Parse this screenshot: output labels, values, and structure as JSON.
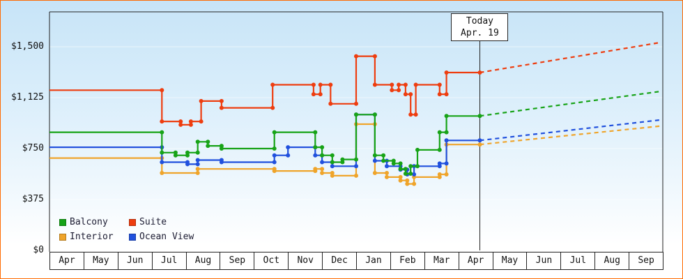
{
  "frame": {
    "border_color": "#ff6a00"
  },
  "chart_data": {
    "type": "line-step",
    "title": "",
    "y_axis": {
      "tick_labels": [
        "$0",
        "$375",
        "$750",
        "$1,125",
        "$1,500"
      ],
      "tick_values": [
        0,
        375,
        750,
        1125,
        1500
      ]
    },
    "x_axis": {
      "month_labels": [
        "Apr",
        "May",
        "Jun",
        "Jul",
        "Aug",
        "Sep",
        "Oct",
        "Nov",
        "Dec",
        "Jan",
        "Feb",
        "Mar",
        "Apr",
        "May",
        "Jun",
        "Jul",
        "Aug",
        "Sep"
      ]
    },
    "today": {
      "label": "Today",
      "date": "Apr. 19",
      "month_position": 12.63
    },
    "projection_end_month": 17.9,
    "series": [
      {
        "name": "Interior",
        "color": "#efa42a",
        "steps": [
          [
            0,
            680
          ],
          [
            3.3,
            570
          ],
          [
            4.35,
            600
          ],
          [
            6.6,
            585
          ],
          [
            7.8,
            600
          ],
          [
            8.0,
            570
          ],
          [
            8.3,
            550
          ],
          [
            9.0,
            930
          ],
          [
            9.55,
            570
          ],
          [
            9.9,
            540
          ],
          [
            10.3,
            515
          ],
          [
            10.5,
            490
          ],
          [
            10.7,
            540
          ],
          [
            11.45,
            560
          ],
          [
            11.65,
            780
          ]
        ],
        "projection_value": 915
      },
      {
        "name": "Ocean View",
        "color": "#2050dd",
        "steps": [
          [
            0,
            760
          ],
          [
            3.3,
            650
          ],
          [
            4.05,
            635
          ],
          [
            4.35,
            665
          ],
          [
            5.05,
            650
          ],
          [
            6.6,
            700
          ],
          [
            7.0,
            760
          ],
          [
            7.8,
            700
          ],
          [
            8.0,
            650
          ],
          [
            8.3,
            620
          ],
          [
            9.0,
            1000
          ],
          [
            9.55,
            660
          ],
          [
            9.9,
            620
          ],
          [
            10.3,
            595
          ],
          [
            10.5,
            560
          ],
          [
            10.7,
            620
          ],
          [
            11.45,
            640
          ],
          [
            11.65,
            810
          ]
        ],
        "projection_value": 960
      },
      {
        "name": "Balcony",
        "color": "#17a317",
        "steps": [
          [
            0,
            870
          ],
          [
            3.3,
            720
          ],
          [
            3.7,
            700
          ],
          [
            4.05,
            720
          ],
          [
            4.35,
            800
          ],
          [
            4.65,
            770
          ],
          [
            5.05,
            750
          ],
          [
            6.6,
            870
          ],
          [
            7.8,
            760
          ],
          [
            8.0,
            700
          ],
          [
            8.3,
            650
          ],
          [
            8.6,
            670
          ],
          [
            9.0,
            1000
          ],
          [
            9.55,
            700
          ],
          [
            9.8,
            660
          ],
          [
            10.1,
            640
          ],
          [
            10.3,
            600
          ],
          [
            10.45,
            565
          ],
          [
            10.6,
            620
          ],
          [
            10.8,
            740
          ],
          [
            11.45,
            870
          ],
          [
            11.65,
            990
          ]
        ],
        "projection_value": 1170
      },
      {
        "name": "Suite",
        "color": "#ee3d0f",
        "steps": [
          [
            0,
            1180
          ],
          [
            3.3,
            950
          ],
          [
            3.85,
            925
          ],
          [
            4.15,
            950
          ],
          [
            4.45,
            1100
          ],
          [
            5.05,
            1050
          ],
          [
            6.55,
            1220
          ],
          [
            7.75,
            1150
          ],
          [
            7.95,
            1220
          ],
          [
            8.25,
            1080
          ],
          [
            9.0,
            1430
          ],
          [
            9.55,
            1220
          ],
          [
            10.05,
            1180
          ],
          [
            10.25,
            1220
          ],
          [
            10.45,
            1150
          ],
          [
            10.6,
            1000
          ],
          [
            10.75,
            1220
          ],
          [
            11.45,
            1150
          ],
          [
            11.65,
            1310
          ]
        ],
        "projection_value": 1530
      }
    ],
    "legend": {
      "items": [
        {
          "label": "Balcony",
          "color": "#17a317"
        },
        {
          "label": "Suite",
          "color": "#ee3d0f"
        },
        {
          "label": "Interior",
          "color": "#efa42a"
        },
        {
          "label": "Ocean View",
          "color": "#2050dd"
        }
      ]
    }
  }
}
